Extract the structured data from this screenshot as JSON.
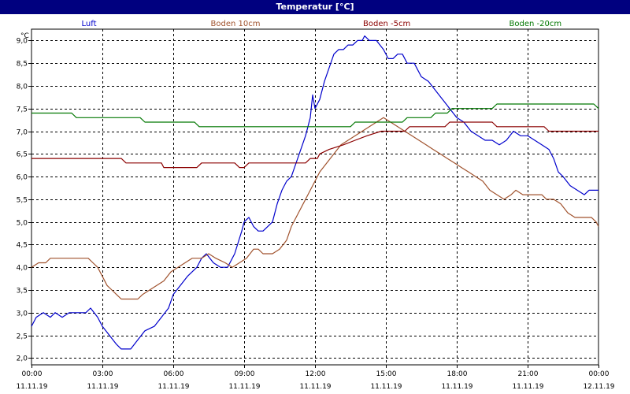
{
  "window": {
    "title": "Temperatur [°C]"
  },
  "colors": {
    "Luft": "#0000cc",
    "Boden 10cm": "#a0522d",
    "Boden -5cm": "#8b0000",
    "Boden -20cm": "#007700"
  },
  "chart_data": {
    "type": "line",
    "title": "Temperatur [°C]",
    "ylabel": "°C",
    "ylim": [
      1.85,
      9.25
    ],
    "yticks": [
      "2,0",
      "2,5",
      "3,0",
      "3,5",
      "4,0",
      "4,5",
      "5,0",
      "5,5",
      "6,0",
      "6,5",
      "7,0",
      "7,5",
      "8,0",
      "8,5",
      "9,0"
    ],
    "xlim": [
      0,
      24
    ],
    "xticks": [
      {
        "time": "00:00",
        "date": "11.11.19"
      },
      {
        "time": "03:00",
        "date": "11.11.19"
      },
      {
        "time": "06:00",
        "date": "11.11.19"
      },
      {
        "time": "09:00",
        "date": "11.11.19"
      },
      {
        "time": "12:00",
        "date": "11.11.19"
      },
      {
        "time": "15:00",
        "date": "11.11.19"
      },
      {
        "time": "18:00",
        "date": "11.11.19"
      },
      {
        "time": "21:00",
        "date": "11.11.19"
      },
      {
        "time": "00:00",
        "date": "12.11.19"
      }
    ],
    "grid": true,
    "legend_position": "top",
    "series": [
      {
        "name": "Luft",
        "points": [
          [
            0,
            2.7
          ],
          [
            0.2,
            2.9
          ],
          [
            0.5,
            3.0
          ],
          [
            0.8,
            2.9
          ],
          [
            1.0,
            3.0
          ],
          [
            1.3,
            2.9
          ],
          [
            1.6,
            3.0
          ],
          [
            2.0,
            3.0
          ],
          [
            2.3,
            3.0
          ],
          [
            2.5,
            3.1
          ],
          [
            2.8,
            2.9
          ],
          [
            3.0,
            2.7
          ],
          [
            3.3,
            2.5
          ],
          [
            3.6,
            2.3
          ],
          [
            3.8,
            2.2
          ],
          [
            4.2,
            2.2
          ],
          [
            4.5,
            2.4
          ],
          [
            4.8,
            2.6
          ],
          [
            5.2,
            2.7
          ],
          [
            5.5,
            2.9
          ],
          [
            5.8,
            3.1
          ],
          [
            6.0,
            3.4
          ],
          [
            6.3,
            3.6
          ],
          [
            6.6,
            3.8
          ],
          [
            7.0,
            4.0
          ],
          [
            7.2,
            4.2
          ],
          [
            7.4,
            4.3
          ],
          [
            7.7,
            4.1
          ],
          [
            8.0,
            4.0
          ],
          [
            8.3,
            4.0
          ],
          [
            8.6,
            4.3
          ],
          [
            8.9,
            4.8
          ],
          [
            9.0,
            5.0
          ],
          [
            9.2,
            5.1
          ],
          [
            9.4,
            4.9
          ],
          [
            9.6,
            4.8
          ],
          [
            9.8,
            4.8
          ],
          [
            10.0,
            4.9
          ],
          [
            10.2,
            5.0
          ],
          [
            10.4,
            5.4
          ],
          [
            10.6,
            5.7
          ],
          [
            10.8,
            5.9
          ],
          [
            11.0,
            6.0
          ],
          [
            11.2,
            6.3
          ],
          [
            11.4,
            6.6
          ],
          [
            11.6,
            6.9
          ],
          [
            11.8,
            7.3
          ],
          [
            11.9,
            7.8
          ],
          [
            12.0,
            7.5
          ],
          [
            12.2,
            7.7
          ],
          [
            12.4,
            8.1
          ],
          [
            12.6,
            8.4
          ],
          [
            12.8,
            8.7
          ],
          [
            13.0,
            8.8
          ],
          [
            13.2,
            8.8
          ],
          [
            13.4,
            8.9
          ],
          [
            13.6,
            8.9
          ],
          [
            13.8,
            9.0
          ],
          [
            14.0,
            9.0
          ],
          [
            14.1,
            9.1
          ],
          [
            14.3,
            9.0
          ],
          [
            14.6,
            9.0
          ],
          [
            14.9,
            8.8
          ],
          [
            15.1,
            8.6
          ],
          [
            15.3,
            8.6
          ],
          [
            15.5,
            8.7
          ],
          [
            15.7,
            8.7
          ],
          [
            15.9,
            8.5
          ],
          [
            16.2,
            8.5
          ],
          [
            16.5,
            8.2
          ],
          [
            16.8,
            8.1
          ],
          [
            17.1,
            7.9
          ],
          [
            17.4,
            7.7
          ],
          [
            17.7,
            7.5
          ],
          [
            18.0,
            7.3
          ],
          [
            18.3,
            7.2
          ],
          [
            18.6,
            7.0
          ],
          [
            18.9,
            6.9
          ],
          [
            19.2,
            6.8
          ],
          [
            19.5,
            6.8
          ],
          [
            19.8,
            6.7
          ],
          [
            20.1,
            6.8
          ],
          [
            20.4,
            7.0
          ],
          [
            20.7,
            6.9
          ],
          [
            21.0,
            6.9
          ],
          [
            21.3,
            6.8
          ],
          [
            21.6,
            6.7
          ],
          [
            21.9,
            6.6
          ],
          [
            22.1,
            6.4
          ],
          [
            22.3,
            6.1
          ],
          [
            22.5,
            6.0
          ],
          [
            22.8,
            5.8
          ],
          [
            23.1,
            5.7
          ],
          [
            23.4,
            5.6
          ],
          [
            23.6,
            5.7
          ],
          [
            24.0,
            5.7
          ]
        ]
      },
      {
        "name": "Boden 10cm",
        "points": [
          [
            0,
            4.0
          ],
          [
            0.3,
            4.1
          ],
          [
            0.6,
            4.1
          ],
          [
            0.8,
            4.2
          ],
          [
            1.2,
            4.2
          ],
          [
            1.8,
            4.2
          ],
          [
            2.4,
            4.2
          ],
          [
            2.6,
            4.1
          ],
          [
            2.8,
            4.0
          ],
          [
            3.0,
            3.8
          ],
          [
            3.2,
            3.6
          ],
          [
            3.4,
            3.5
          ],
          [
            3.6,
            3.4
          ],
          [
            3.8,
            3.3
          ],
          [
            4.2,
            3.3
          ],
          [
            4.5,
            3.3
          ],
          [
            4.7,
            3.4
          ],
          [
            5.0,
            3.5
          ],
          [
            5.3,
            3.6
          ],
          [
            5.6,
            3.7
          ],
          [
            5.9,
            3.9
          ],
          [
            6.2,
            4.0
          ],
          [
            6.5,
            4.1
          ],
          [
            6.8,
            4.2
          ],
          [
            7.2,
            4.2
          ],
          [
            7.5,
            4.3
          ],
          [
            7.8,
            4.2
          ],
          [
            8.2,
            4.1
          ],
          [
            8.5,
            4.0
          ],
          [
            8.8,
            4.1
          ],
          [
            9.1,
            4.2
          ],
          [
            9.4,
            4.4
          ],
          [
            9.6,
            4.4
          ],
          [
            9.8,
            4.3
          ],
          [
            10.2,
            4.3
          ],
          [
            10.5,
            4.4
          ],
          [
            10.8,
            4.6
          ],
          [
            11.0,
            4.9
          ],
          [
            11.3,
            5.2
          ],
          [
            11.6,
            5.5
          ],
          [
            11.9,
            5.8
          ],
          [
            12.2,
            6.1
          ],
          [
            12.5,
            6.3
          ],
          [
            12.8,
            6.5
          ],
          [
            13.1,
            6.7
          ],
          [
            13.4,
            6.8
          ],
          [
            13.7,
            6.9
          ],
          [
            14.0,
            7.0
          ],
          [
            14.3,
            7.1
          ],
          [
            14.6,
            7.2
          ],
          [
            14.9,
            7.3
          ],
          [
            15.2,
            7.2
          ],
          [
            15.5,
            7.1
          ],
          [
            15.8,
            7.0
          ],
          [
            16.1,
            6.9
          ],
          [
            16.4,
            6.8
          ],
          [
            16.7,
            6.7
          ],
          [
            17.0,
            6.6
          ],
          [
            17.3,
            6.5
          ],
          [
            17.6,
            6.4
          ],
          [
            17.9,
            6.3
          ],
          [
            18.2,
            6.2
          ],
          [
            18.5,
            6.1
          ],
          [
            18.8,
            6.0
          ],
          [
            19.1,
            5.9
          ],
          [
            19.4,
            5.7
          ],
          [
            19.7,
            5.6
          ],
          [
            20.0,
            5.5
          ],
          [
            20.3,
            5.6
          ],
          [
            20.5,
            5.7
          ],
          [
            20.8,
            5.6
          ],
          [
            21.2,
            5.6
          ],
          [
            21.6,
            5.6
          ],
          [
            21.8,
            5.5
          ],
          [
            22.1,
            5.5
          ],
          [
            22.4,
            5.4
          ],
          [
            22.7,
            5.2
          ],
          [
            23.0,
            5.1
          ],
          [
            23.4,
            5.1
          ],
          [
            23.7,
            5.1
          ],
          [
            23.9,
            5.0
          ],
          [
            24.0,
            4.9
          ]
        ]
      },
      {
        "name": "Boden -5cm",
        "points": [
          [
            0,
            6.4
          ],
          [
            3.8,
            6.4
          ],
          [
            4.0,
            6.3
          ],
          [
            5.5,
            6.3
          ],
          [
            5.6,
            6.2
          ],
          [
            7.0,
            6.2
          ],
          [
            7.2,
            6.3
          ],
          [
            8.6,
            6.3
          ],
          [
            8.8,
            6.2
          ],
          [
            9.0,
            6.2
          ],
          [
            9.2,
            6.3
          ],
          [
            11.6,
            6.3
          ],
          [
            11.8,
            6.4
          ],
          [
            12.1,
            6.4
          ],
          [
            12.2,
            6.5
          ],
          [
            12.6,
            6.6
          ],
          [
            13.2,
            6.7
          ],
          [
            13.7,
            6.8
          ],
          [
            14.2,
            6.9
          ],
          [
            14.8,
            7.0
          ],
          [
            15.8,
            7.0
          ],
          [
            16.0,
            7.1
          ],
          [
            17.5,
            7.1
          ],
          [
            17.7,
            7.2
          ],
          [
            19.5,
            7.2
          ],
          [
            19.7,
            7.1
          ],
          [
            21.7,
            7.1
          ],
          [
            21.9,
            7.0
          ],
          [
            24.0,
            7.0
          ]
        ]
      },
      {
        "name": "Boden -20cm",
        "points": [
          [
            0,
            7.4
          ],
          [
            1.7,
            7.4
          ],
          [
            1.9,
            7.3
          ],
          [
            4.6,
            7.3
          ],
          [
            4.8,
            7.2
          ],
          [
            6.9,
            7.2
          ],
          [
            7.1,
            7.1
          ],
          [
            13.5,
            7.1
          ],
          [
            13.7,
            7.2
          ],
          [
            15.7,
            7.2
          ],
          [
            15.9,
            7.3
          ],
          [
            16.9,
            7.3
          ],
          [
            17.1,
            7.4
          ],
          [
            17.6,
            7.4
          ],
          [
            17.8,
            7.5
          ],
          [
            19.5,
            7.5
          ],
          [
            19.7,
            7.6
          ],
          [
            23.8,
            7.6
          ],
          [
            24.0,
            7.5
          ]
        ]
      }
    ]
  }
}
